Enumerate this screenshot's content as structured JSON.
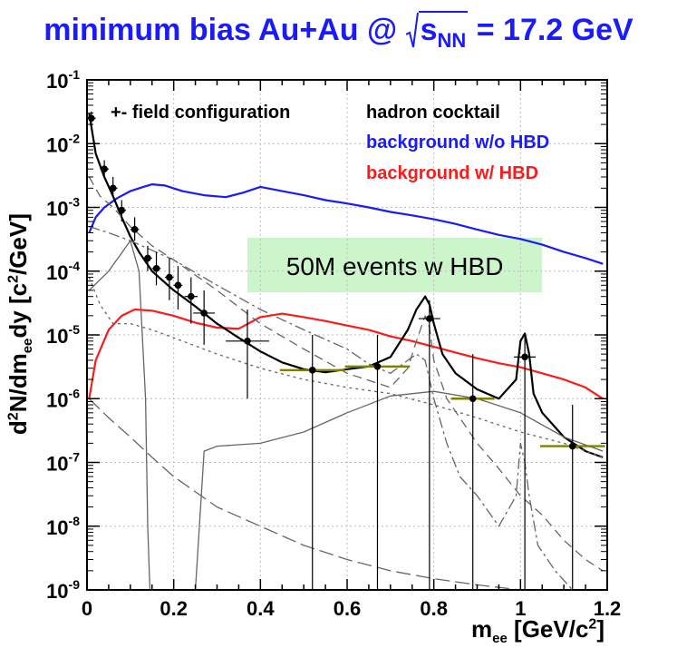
{
  "title_parts": {
    "prefix": "minimum bias Au+Au @ ",
    "s": "s",
    "nn": "NN",
    "suffix": " = 17.2 GeV"
  },
  "ylabel_parts": {
    "d": "d",
    "two": "2",
    "n": "N/dm",
    "ee": "ee",
    "dy": "dy [c",
    "c2": "2",
    "gev": "/GeV]"
  },
  "xlabel_parts": {
    "m": "m",
    "ee": "ee",
    "unit": " [GeV/c",
    "two": "2",
    "close": "]"
  },
  "colors": {
    "blue": "#1a1aff",
    "red": "#ff1a1a",
    "black": "#000000",
    "grey": "#666666",
    "olive": "#808000",
    "green_box": "#ccf5cc"
  },
  "chart_data": {
    "type": "line",
    "title": "minimum bias Au+Au @ √sNN = 17.2 GeV",
    "xlabel": "m_ee [GeV/c²]",
    "ylabel": "d²N/dm_ee dy [c²/GeV]",
    "xlim": [
      0,
      1.2
    ],
    "ylim_log10": [
      -9,
      -1
    ],
    "x_ticks": [
      "0",
      "0.2",
      "0.4",
      "0.6",
      "0.8",
      "1",
      "1.2"
    ],
    "y_ticks": [
      {
        "base": "10",
        "exp": "-1"
      },
      {
        "base": "10",
        "exp": "-2"
      },
      {
        "base": "10",
        "exp": "-3"
      },
      {
        "base": "10",
        "exp": "-4"
      },
      {
        "base": "10",
        "exp": "-5"
      },
      {
        "base": "10",
        "exp": "-6"
      },
      {
        "base": "10",
        "exp": "-7"
      },
      {
        "base": "10",
        "exp": "-8"
      },
      {
        "base": "10",
        "exp": "-9"
      }
    ],
    "legend": {
      "field": "+- field configuration",
      "cocktail": "hadron cocktail",
      "bg_without": "background w/o HBD",
      "bg_with": "background w/ HBD"
    },
    "annotation": "50M events w HBD",
    "annotation_box_x": [
      0.37,
      1.05
    ],
    "series": [
      {
        "name": "background w/o HBD",
        "color": "blue",
        "x": [
          0.005,
          0.02,
          0.04,
          0.07,
          0.1,
          0.13,
          0.15,
          0.18,
          0.22,
          0.27,
          0.32,
          0.36,
          0.4,
          0.45,
          0.5,
          0.55,
          0.6,
          0.65,
          0.7,
          0.75,
          0.8,
          0.85,
          0.9,
          0.95,
          1.0,
          1.05,
          1.1,
          1.15,
          1.19
        ],
        "y": [
          0.0004,
          0.0007,
          0.001,
          0.0014,
          0.0018,
          0.0021,
          0.0023,
          0.0022,
          0.0018,
          0.00155,
          0.00145,
          0.0017,
          0.0021,
          0.0018,
          0.00155,
          0.0013,
          0.00115,
          0.001,
          0.00085,
          0.00075,
          0.00065,
          0.00055,
          0.00045,
          0.00037,
          0.00032,
          0.00026,
          0.0002,
          0.00016,
          0.00013
        ]
      },
      {
        "name": "background w/ HBD",
        "color": "red",
        "x": [
          0.005,
          0.02,
          0.05,
          0.08,
          0.11,
          0.15,
          0.2,
          0.25,
          0.3,
          0.35,
          0.4,
          0.45,
          0.5,
          0.55,
          0.6,
          0.65,
          0.7,
          0.75,
          0.8,
          0.85,
          0.9,
          0.95,
          1.0,
          1.05,
          1.1,
          1.15,
          1.19
        ],
        "y": [
          1e-06,
          4e-06,
          1.2e-05,
          2e-05,
          2.5e-05,
          2.4e-05,
          2e-05,
          1.55e-05,
          1.3e-05,
          1.25e-05,
          1.9e-05,
          2.15e-05,
          1.9e-05,
          1.65e-05,
          1.4e-05,
          1.2e-05,
          9.5e-06,
          8e-06,
          6.5e-06,
          5.3e-06,
          4.3e-06,
          3.6e-06,
          3.1e-06,
          2.5e-06,
          2e-06,
          1.5e-06,
          1e-06
        ]
      },
      {
        "name": "hadron cocktail",
        "color": "black",
        "x": [
          0.005,
          0.02,
          0.04,
          0.06,
          0.08,
          0.1,
          0.12,
          0.15,
          0.2,
          0.25,
          0.3,
          0.35,
          0.4,
          0.45,
          0.5,
          0.55,
          0.6,
          0.65,
          0.7,
          0.74,
          0.76,
          0.78,
          0.79,
          0.8,
          0.82,
          0.85,
          0.9,
          0.95,
          0.99,
          1.0,
          1.01,
          1.02,
          1.03,
          1.05,
          1.1,
          1.15,
          1.19
        ],
        "y": [
          0.03,
          0.007,
          0.003,
          0.0015,
          0.0007,
          0.00035,
          0.0002,
          0.0001,
          5e-05,
          2.8e-05,
          1.5e-05,
          9e-06,
          5.5e-06,
          3.7e-06,
          2.9e-06,
          2.6e-06,
          2.9e-06,
          3.2e-06,
          4.5e-06,
          1.2e-05,
          2.5e-05,
          4e-05,
          3e-05,
          1.5e-05,
          5e-06,
          2.5e-06,
          1.4e-06,
          1e-06,
          2e-06,
          8e-06,
          1.05e-05,
          5e-06,
          1.2e-06,
          6e-07,
          2.5e-07,
          1.5e-07,
          1.2e-07
        ]
      },
      {
        "name": "component solid grey",
        "color": "grey",
        "x": [
          0.005,
          0.05,
          0.1,
          0.12,
          0.135,
          0.14,
          0.145,
          0.17,
          0.24,
          0.25,
          0.27,
          0.3,
          0.4,
          0.5,
          0.6,
          0.7,
          0.8,
          0.9,
          1.0,
          1.1,
          1.19
        ],
        "y": [
          5e-05,
          0.0001,
          0.0003,
          0.0001,
          1e-06,
          1e-08,
          1e-09,
          1e-09,
          1e-09,
          1e-09,
          1.5e-07,
          1.8e-07,
          2e-07,
          3e-07,
          6e-07,
          1.1e-06,
          1.3e-06,
          1e-06,
          6e-07,
          2.5e-07,
          1.5e-07
        ]
      },
      {
        "name": "component dashed",
        "color": "grey",
        "dash": "10,6",
        "x": [
          0.005,
          0.03,
          0.06,
          0.1,
          0.15,
          0.2,
          0.3,
          0.4,
          0.5,
          0.6,
          0.7,
          0.74,
          0.76,
          0.78,
          0.79,
          0.8,
          0.83,
          0.86,
          0.9,
          0.95,
          1.0,
          1.05,
          1.1,
          1.15,
          1.19
        ],
        "y": [
          0.003,
          0.0015,
          0.001,
          0.0005,
          0.00025,
          0.00015,
          5e-05,
          1.5e-05,
          6e-06,
          2.5e-06,
          1.5e-06,
          3e-06,
          8e-06,
          2e-05,
          1.3e-05,
          4e-06,
          1e-06,
          5e-07,
          2e-07,
          8e-08,
          3e-08,
          1.5e-08,
          6e-09,
          3e-09,
          2e-09
        ]
      },
      {
        "name": "component dotted",
        "color": "grey",
        "dash": "3,4",
        "x": [
          0.005,
          0.03,
          0.06,
          0.1,
          0.15,
          0.2,
          0.3,
          0.4,
          0.5,
          0.6,
          0.7,
          0.8,
          0.9,
          1.0,
          1.1,
          1.19
        ],
        "y": [
          8e-05,
          3e-05,
          1.5e-05,
          1.5e-05,
          1.2e-05,
          9e-06,
          5e-06,
          3e-06,
          2e-06,
          1.5e-06,
          1.2e-06,
          8e-07,
          5e-07,
          3e-07,
          2e-07,
          1.2e-07
        ]
      },
      {
        "name": "component dash-dot",
        "color": "grey",
        "dash": "12,4,3,4",
        "x": [
          0.005,
          0.05,
          0.1,
          0.2,
          0.3,
          0.4,
          0.5,
          0.6,
          0.65,
          0.7,
          0.74,
          0.76,
          0.78,
          0.8,
          0.83,
          0.86,
          0.9,
          0.95,
          0.99,
          1.0,
          1.01,
          1.02,
          1.04,
          1.08,
          1.12,
          1.16,
          1.19
        ],
        "y": [
          0.0005,
          0.0004,
          0.0003,
          0.00015,
          6e-05,
          2.5e-05,
          1.2e-05,
          6e-06,
          3.5e-06,
          2.5e-06,
          4e-06,
          5e-06,
          4e-06,
          1e-06,
          2e-07,
          6e-08,
          3e-08,
          1e-08,
          3e-08,
          2e-07,
          1e-07,
          3e-08,
          5e-09,
          2e-09,
          1e-09,
          1e-09,
          1e-09
        ]
      },
      {
        "name": "component long dash low",
        "color": "grey",
        "dash": "16,6",
        "x": [
          0.005,
          0.05,
          0.1,
          0.15,
          0.2,
          0.3,
          0.4,
          0.5,
          0.6,
          0.7,
          0.8,
          0.9,
          1.0,
          1.1,
          1.19
        ],
        "y": [
          1e-06,
          5e-07,
          2.5e-07,
          1.2e-07,
          6e-08,
          2e-08,
          1e-08,
          5e-09,
          3e-09,
          2e-09,
          1.5e-09,
          1.2e-09,
          1e-09,
          1e-09,
          1e-09
        ]
      }
    ],
    "data_points": {
      "x": [
        0.01,
        0.04,
        0.06,
        0.08,
        0.11,
        0.14,
        0.16,
        0.19,
        0.21,
        0.24,
        0.27,
        0.37,
        0.52,
        0.67,
        0.79,
        0.89,
        1.01,
        1.12
      ],
      "y": [
        0.025,
        0.004,
        0.002,
        0.0009,
        0.00045,
        0.00016,
        0.00011,
        8e-05,
        6e-05,
        4e-05,
        2.2e-05,
        8e-06,
        2.8e-06,
        3.2e-06,
        1.8e-05,
        1e-06,
        4.5e-06,
        1.8e-07
      ],
      "xerr": [
        0.01,
        0.01,
        0.01,
        0.01,
        0.01,
        0.01,
        0.01,
        0.01,
        0.01,
        0.015,
        0.025,
        0.05,
        0.075,
        0.075,
        0.025,
        0.05,
        0.025,
        0.075
      ],
      "ylo": [
        0.02,
        0.003,
        0.0015,
        0.0006,
        0.0003,
        0.0001,
        6e-05,
        3.5e-05,
        2.5e-05,
        1.5e-05,
        7e-06,
        1e-06,
        1e-09,
        1e-09,
        1e-09,
        1e-09,
        1e-09,
        1e-09
      ],
      "yhi": [
        0.032,
        0.0055,
        0.003,
        0.0013,
        0.0007,
        0.00025,
        0.0002,
        0.00016,
        0.00012,
        8e-05,
        5e-05,
        2.5e-05,
        1e-05,
        1e-05,
        3.5e-05,
        5e-06,
        1e-05,
        8e-07
      ],
      "olive_mark": [
        false,
        false,
        false,
        false,
        false,
        false,
        false,
        false,
        false,
        false,
        false,
        false,
        true,
        true,
        false,
        true,
        false,
        true
      ]
    }
  }
}
